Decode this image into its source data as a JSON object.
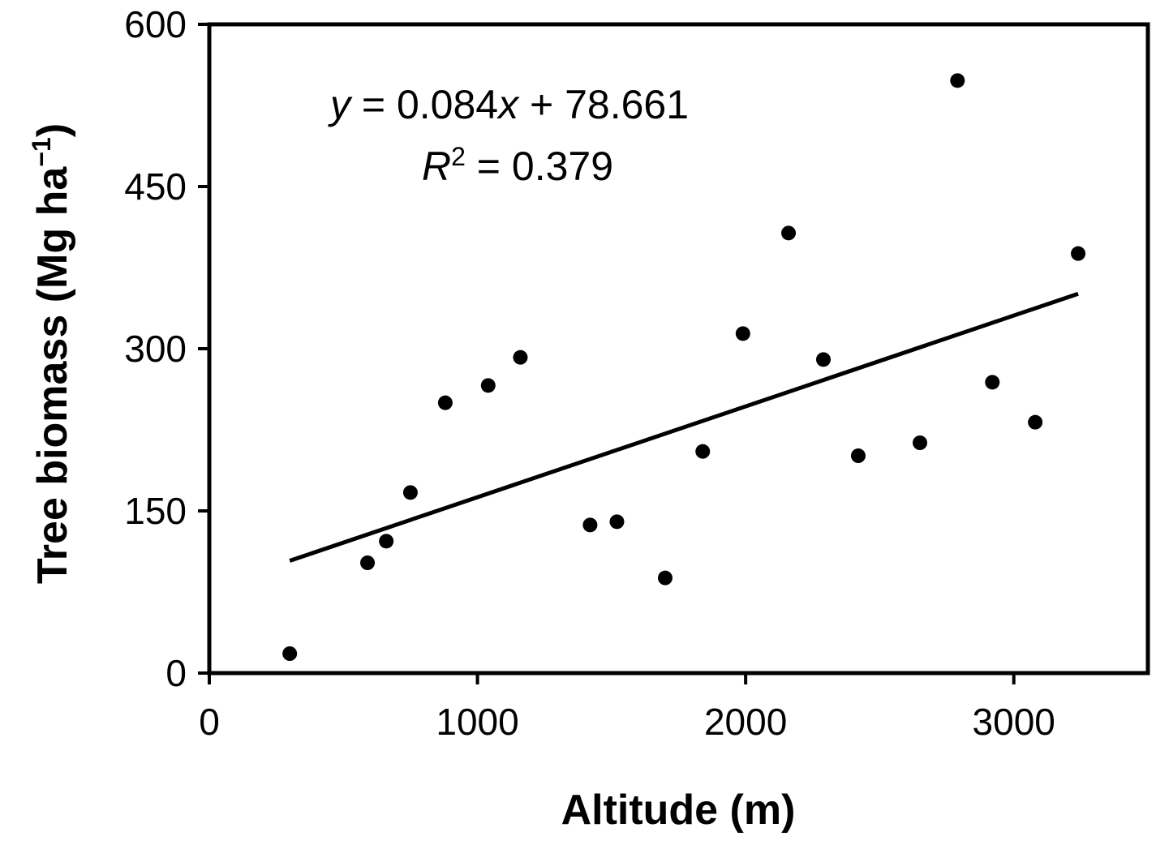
{
  "chart_data": {
    "type": "scatter",
    "title": "",
    "xlabel": "Altitude (m)",
    "ylabel_main": "Tree biomass (Mg ha",
    "ylabel_exp": "−1",
    "ylabel_close": ")",
    "xlim": [
      0,
      3500
    ],
    "ylim": [
      0,
      600
    ],
    "xticks": [
      0,
      1000,
      2000,
      3000
    ],
    "yticks": [
      0,
      150,
      300,
      450,
      600
    ],
    "xtick_labels": [
      "0",
      "1000",
      "2000",
      "3000"
    ],
    "ytick_labels": [
      "0",
      "150",
      "300",
      "450",
      "600"
    ],
    "grid": false,
    "legend": "none",
    "point_color": "#000000",
    "series": [
      {
        "x": [
          300,
          590,
          660,
          750,
          880,
          1040,
          1160,
          1420,
          1520,
          1700,
          1840,
          1990,
          2160,
          2290,
          2420,
          2650,
          2790,
          2920,
          3080,
          3240
        ],
        "y": [
          18,
          102,
          122,
          167,
          250,
          266,
          292,
          137,
          140,
          88,
          205,
          314,
          407,
          290,
          201,
          213,
          548,
          269,
          232,
          388
        ]
      }
    ],
    "trendline": {
      "slope": 0.084,
      "intercept": 78.661,
      "x_range": [
        300,
        3240
      ]
    },
    "annotations": {
      "equation_y": "y",
      "equation_rest": " = 0.084",
      "equation_x": "x",
      "equation_tail": " + 78.661",
      "r2_letter": "R",
      "r2_exp": "2",
      "r2_value": " = 0.379"
    }
  }
}
